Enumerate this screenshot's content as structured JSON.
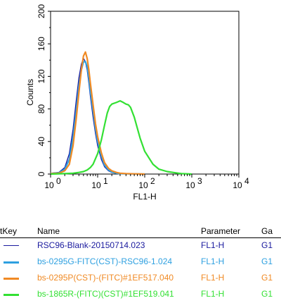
{
  "chart_data": {
    "type": "line",
    "title": "",
    "xlabel": "FL1-H",
    "ylabel": "Counts",
    "x_scale": "log",
    "xlim": [
      1,
      10000
    ],
    "ylim": [
      0,
      200
    ],
    "x_tick_bases": [
      "10",
      "10",
      "10",
      "10",
      "10"
    ],
    "x_tick_exponents": [
      "0",
      "1",
      "2",
      "3",
      "4"
    ],
    "y_ticks": [
      "0",
      "40",
      "80",
      "120",
      "160",
      "200"
    ],
    "grid": false,
    "series": [
      {
        "name": "RSC96-Blank-20150714.023",
        "color": "#1a1a9e",
        "x": [
          1,
          1.5,
          2,
          2.5,
          3,
          3.5,
          4,
          4.5,
          5,
          5.5,
          6,
          6.5,
          7,
          8,
          9,
          10,
          12,
          14,
          17,
          20,
          25,
          30,
          40,
          60,
          100
        ],
        "y": [
          1,
          2,
          8,
          25,
          55,
          90,
          118,
          135,
          142,
          138,
          128,
          112,
          96,
          70,
          50,
          35,
          18,
          9,
          4,
          2,
          1,
          0.5,
          0.3,
          0.2,
          0
        ]
      },
      {
        "name": "bs-0295G-FITC(CST)-RSC96-1.024",
        "color": "#2ea0e0",
        "x": [
          1,
          1.5,
          2,
          2.5,
          3,
          3.5,
          4,
          4.5,
          5,
          5.5,
          6,
          6.5,
          7,
          8,
          9,
          10,
          12,
          14,
          17,
          20,
          25,
          30,
          40,
          60,
          100
        ],
        "y": [
          0.5,
          1.5,
          6,
          18,
          45,
          78,
          108,
          128,
          138,
          138,
          132,
          118,
          102,
          78,
          56,
          40,
          22,
          11,
          5,
          2.5,
          1,
          0.5,
          0.3,
          0.2,
          0
        ]
      },
      {
        "name": "bs-0295P(CST)-(FITC)#1EF517.040",
        "color": "#f08a24",
        "x": [
          1,
          1.5,
          2,
          2.5,
          3,
          3.5,
          4,
          4.5,
          5,
          5.5,
          6,
          6.5,
          7,
          8,
          9,
          10,
          12,
          14,
          17,
          20,
          25,
          30,
          40,
          60,
          100
        ],
        "y": [
          0.5,
          1,
          4,
          12,
          35,
          68,
          100,
          128,
          145,
          150,
          142,
          128,
          112,
          85,
          62,
          46,
          26,
          14,
          7,
          4,
          2,
          1,
          0.5,
          0.3,
          0
        ]
      },
      {
        "name": "bs-1865R-(FITC)(CST)#1EF519.041",
        "color": "#33e033",
        "x": [
          1,
          2,
          3,
          4,
          5,
          6,
          7,
          8,
          10,
          12,
          14,
          16,
          18,
          20,
          25,
          30,
          35,
          40,
          45,
          50,
          60,
          70,
          80,
          100,
          150,
          200,
          300,
          400,
          600,
          1000
        ],
        "y": [
          0,
          0.5,
          1,
          2,
          3,
          5,
          8,
          12,
          25,
          42,
          60,
          75,
          83,
          86,
          88,
          90,
          88,
          86,
          85,
          82,
          70,
          56,
          44,
          28,
          12,
          6,
          3,
          2,
          0.5,
          0
        ]
      }
    ]
  },
  "legend": {
    "headers": {
      "key": "tKey",
      "name": "Name",
      "parameter": "Parameter",
      "gate": "Ga"
    },
    "rows": [
      {
        "name": "RSC96-Blank-20150714.023",
        "parameter": "FL1-H",
        "gate": "G1",
        "color": "#1a1a9e"
      },
      {
        "name": "bs-0295G-FITC(CST)-RSC96-1.024",
        "parameter": "FL1-H",
        "gate": "G1",
        "color": "#2ea0e0"
      },
      {
        "name": "bs-0295P(CST)-(FITC)#1EF517.040",
        "parameter": "FL1-H",
        "gate": "G1",
        "color": "#f08a24"
      },
      {
        "name": "bs-1865R-(FITC)(CST)#1EF519.041",
        "parameter": "FL1-H",
        "gate": "G1",
        "color": "#33e033"
      }
    ]
  }
}
